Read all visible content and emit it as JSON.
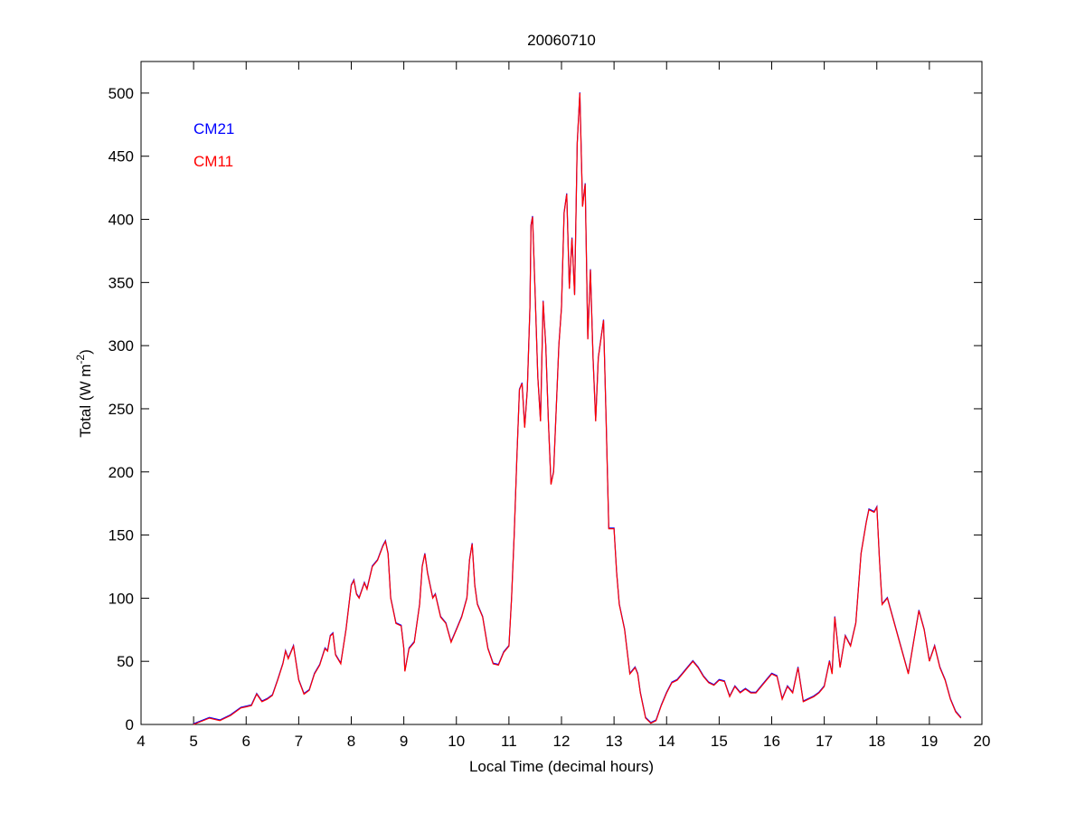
{
  "chart_data": {
    "type": "line",
    "title": "20060710",
    "xlabel": "Local Time (decimal hours)",
    "ylabel": "Total (W m-2)",
    "ylabel_parts": {
      "main": "Total (W m",
      "sup": "-2",
      "close": ")"
    },
    "xlim": [
      4,
      20
    ],
    "ylim": [
      0,
      525
    ],
    "xticks": [
      4,
      5,
      6,
      7,
      8,
      9,
      10,
      11,
      12,
      13,
      14,
      15,
      16,
      17,
      18,
      19,
      20
    ],
    "yticks": [
      0,
      50,
      100,
      150,
      200,
      250,
      300,
      350,
      400,
      450,
      500
    ],
    "grid": false,
    "legend_placement": "top-left",
    "series": [
      {
        "name": "CM21",
        "color": "#0000ff"
      },
      {
        "name": "CM11",
        "color": "#ff0000"
      }
    ],
    "x": [
      5.0,
      5.3,
      5.5,
      5.7,
      5.9,
      6.0,
      6.1,
      6.2,
      6.3,
      6.4,
      6.5,
      6.6,
      6.7,
      6.75,
      6.8,
      6.9,
      7.0,
      7.1,
      7.2,
      7.3,
      7.4,
      7.5,
      7.55,
      7.6,
      7.65,
      7.7,
      7.8,
      7.9,
      8.0,
      8.05,
      8.1,
      8.15,
      8.25,
      8.3,
      8.4,
      8.5,
      8.6,
      8.65,
      8.7,
      8.75,
      8.85,
      8.95,
      9.0,
      9.02,
      9.1,
      9.2,
      9.3,
      9.35,
      9.4,
      9.45,
      9.55,
      9.6,
      9.7,
      9.8,
      9.9,
      10.0,
      10.1,
      10.2,
      10.25,
      10.3,
      10.35,
      10.4,
      10.5,
      10.6,
      10.7,
      10.8,
      10.9,
      11.0,
      11.05,
      11.1,
      11.15,
      11.2,
      11.25,
      11.3,
      11.35,
      11.4,
      11.42,
      11.45,
      11.5,
      11.55,
      11.6,
      11.65,
      11.7,
      11.75,
      11.8,
      11.85,
      11.95,
      12.0,
      12.05,
      12.1,
      12.15,
      12.2,
      12.25,
      12.3,
      12.35,
      12.4,
      12.45,
      12.5,
      12.55,
      12.6,
      12.65,
      12.7,
      12.8,
      12.85,
      12.9,
      13.0,
      13.05,
      13.1,
      13.2,
      13.3,
      13.4,
      13.45,
      13.5,
      13.6,
      13.7,
      13.8,
      13.9,
      14.0,
      14.1,
      14.2,
      14.3,
      14.4,
      14.5,
      14.6,
      14.7,
      14.8,
      14.9,
      15.0,
      15.1,
      15.2,
      15.3,
      15.4,
      15.5,
      15.6,
      15.7,
      15.8,
      15.9,
      16.0,
      16.1,
      16.2,
      16.3,
      16.4,
      16.5,
      16.6,
      16.7,
      16.8,
      16.9,
      17.0,
      17.1,
      17.15,
      17.2,
      17.3,
      17.4,
      17.5,
      17.6,
      17.7,
      17.8,
      17.85,
      17.95,
      18.0,
      18.05,
      18.1,
      18.2,
      18.3,
      18.4,
      18.5,
      18.6,
      18.7,
      18.8,
      18.9,
      19.0,
      19.1,
      19.2,
      19.3,
      19.4,
      19.5,
      19.6
    ],
    "values": [
      0,
      5,
      3,
      7,
      13,
      14,
      15,
      24,
      18,
      20,
      23,
      35,
      48,
      58,
      52,
      62,
      35,
      24,
      27,
      40,
      47,
      60,
      58,
      70,
      72,
      55,
      48,
      75,
      110,
      114,
      103,
      100,
      112,
      107,
      125,
      130,
      141,
      145,
      135,
      100,
      80,
      78,
      60,
      42,
      60,
      65,
      95,
      125,
      135,
      120,
      100,
      103,
      85,
      80,
      65,
      75,
      85,
      100,
      130,
      143,
      110,
      95,
      85,
      60,
      48,
      47,
      57,
      62,
      100,
      150,
      210,
      265,
      270,
      235,
      265,
      330,
      395,
      402,
      340,
      275,
      240,
      335,
      300,
      240,
      190,
      200,
      300,
      330,
      405,
      420,
      345,
      385,
      340,
      460,
      500,
      410,
      428,
      305,
      360,
      290,
      240,
      290,
      320,
      240,
      155,
      155,
      120,
      95,
      75,
      40,
      45,
      40,
      25,
      5,
      1,
      3,
      15,
      25,
      33,
      35,
      40,
      45,
      50,
      45,
      38,
      33,
      31,
      35,
      34,
      22,
      30,
      25,
      28,
      25,
      25,
      30,
      35,
      40,
      38,
      20,
      30,
      25,
      45,
      18,
      20,
      22,
      25,
      30,
      50,
      40,
      85,
      45,
      70,
      62,
      80,
      135,
      160,
      170,
      168,
      172,
      130,
      95,
      100,
      85,
      70,
      55,
      40,
      65,
      90,
      75,
      50,
      62,
      45,
      35,
      20,
      10,
      5
    ]
  }
}
